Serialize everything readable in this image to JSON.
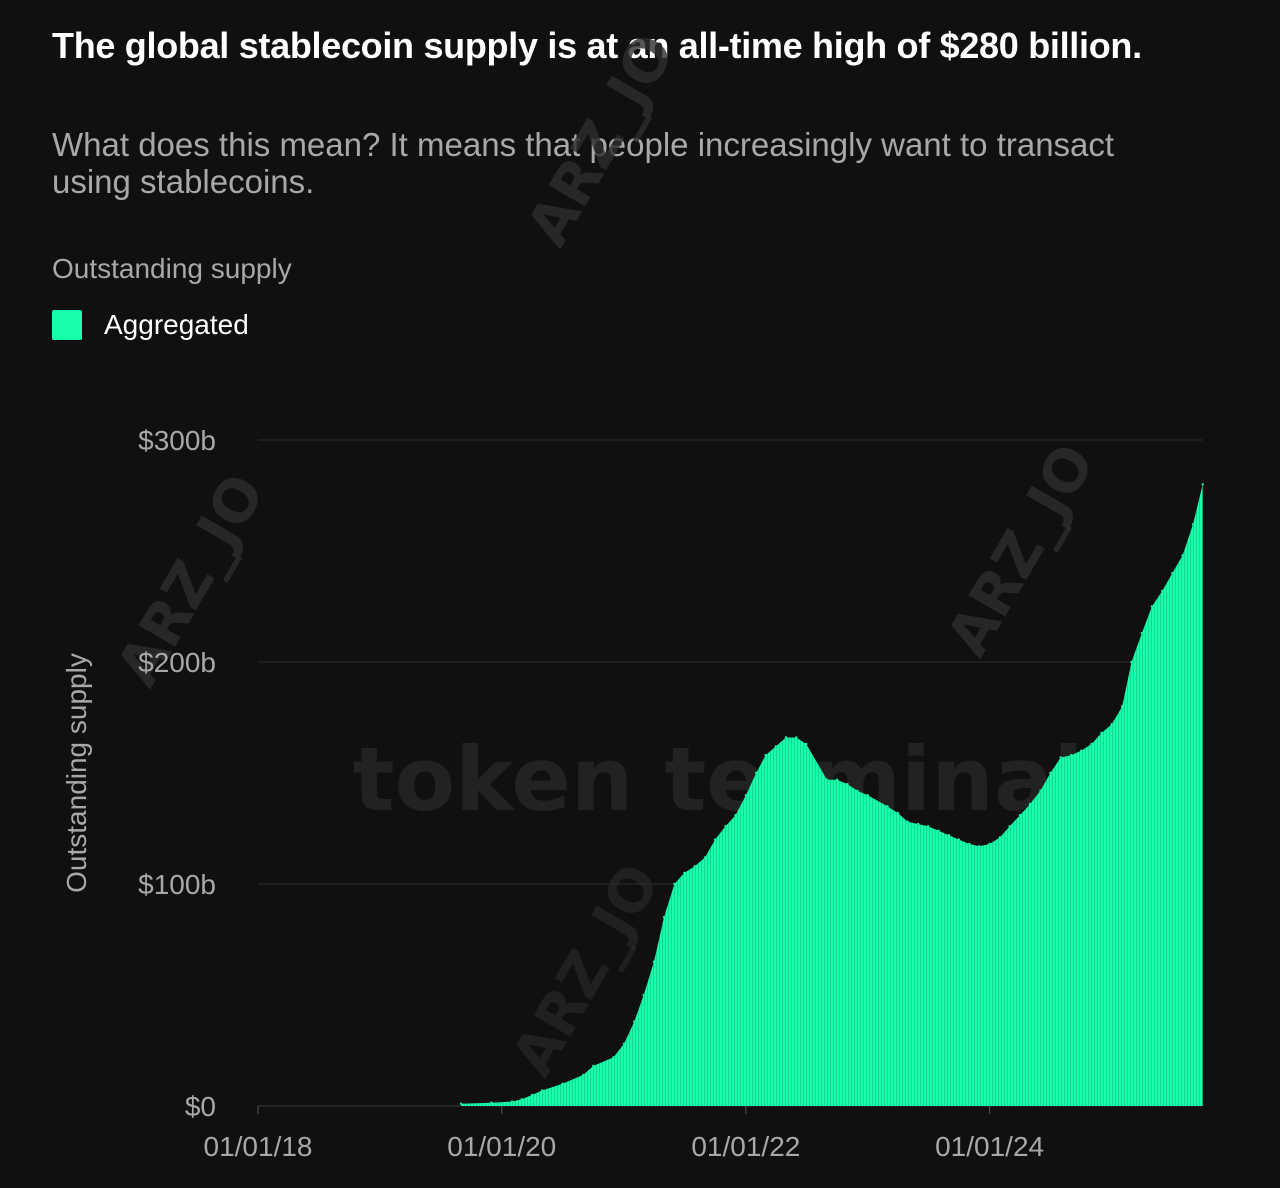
{
  "header": {
    "title": "The global stablecoin supply is at an all-time high of $280 billion.",
    "subtitle": "What does this mean? It means that people increasingly want to transact using stablecoins."
  },
  "section_label": "Outstanding supply",
  "legend": {
    "items": [
      {
        "label": "Aggregated",
        "color": "#17ffab"
      }
    ]
  },
  "watermarks": {
    "brand": "token terminal_",
    "user": "ARZ_JO"
  },
  "colors": {
    "background": "#101010",
    "series": "#17ffab",
    "grid": "#2b2b2b",
    "text_muted": "#a8a8a8"
  },
  "chart_data": {
    "type": "area",
    "ylabel": "Outstanding supply",
    "ylim": [
      0,
      300
    ],
    "xlim": [
      "2018-01-01",
      "2025-10-01"
    ],
    "y_ticks": [
      0,
      100,
      200,
      300
    ],
    "y_tick_labels": [
      "$0",
      "$100b",
      "$200b",
      "$300b"
    ],
    "x_ticks": [
      "2018-01-01",
      "2020-01-01",
      "2022-01-01",
      "2024-01-01"
    ],
    "x_tick_labels": [
      "01/01/18",
      "01/01/20",
      "01/01/22",
      "01/01/24"
    ],
    "grid": true,
    "legend_position": "top-left",
    "series": [
      {
        "name": "Aggregated",
        "color": "#17ffab",
        "x": [
          "2019-09-01",
          "2019-12-01",
          "2020-02-01",
          "2020-03-01",
          "2020-04-01",
          "2020-05-01",
          "2020-07-01",
          "2020-09-01",
          "2020-10-01",
          "2020-12-01",
          "2021-01-01",
          "2021-02-01",
          "2021-03-01",
          "2021-04-01",
          "2021-05-01",
          "2021-06-01",
          "2021-07-01",
          "2021-08-01",
          "2021-09-01",
          "2021-10-01",
          "2021-11-01",
          "2021-12-01",
          "2022-01-01",
          "2022-02-01",
          "2022-03-01",
          "2022-04-01",
          "2022-05-01",
          "2022-06-01",
          "2022-07-01",
          "2022-09-01",
          "2022-10-01",
          "2022-11-01",
          "2022-12-01",
          "2023-01-01",
          "2023-03-01",
          "2023-04-01",
          "2023-05-01",
          "2023-06-01",
          "2023-07-01",
          "2023-08-01",
          "2023-09-01",
          "2023-10-01",
          "2023-11-01",
          "2023-12-01",
          "2024-01-01",
          "2024-02-01",
          "2024-03-01",
          "2024-04-01",
          "2024-05-01",
          "2024-06-01",
          "2024-07-01",
          "2024-08-01",
          "2024-09-01",
          "2024-10-01",
          "2024-11-01",
          "2024-12-01",
          "2025-01-01",
          "2025-02-01",
          "2025-03-01",
          "2025-04-01",
          "2025-05-01",
          "2025-06-01",
          "2025-07-01",
          "2025-08-01",
          "2025-09-01",
          "2025-09-30"
        ],
        "values": [
          1,
          1.5,
          2,
          3,
          5,
          7,
          10,
          14,
          18,
          22,
          28,
          38,
          50,
          65,
          85,
          100,
          105,
          108,
          112,
          120,
          126,
          131,
          140,
          150,
          158,
          162,
          166,
          166,
          163,
          147,
          147,
          145,
          142,
          140,
          135,
          132,
          128,
          127,
          126,
          124,
          122,
          120,
          118,
          117,
          118,
          121,
          126,
          131,
          136,
          142,
          150,
          157,
          158,
          160,
          163,
          168,
          172,
          180,
          200,
          213,
          225,
          232,
          240,
          248,
          262,
          280
        ]
      }
    ]
  }
}
